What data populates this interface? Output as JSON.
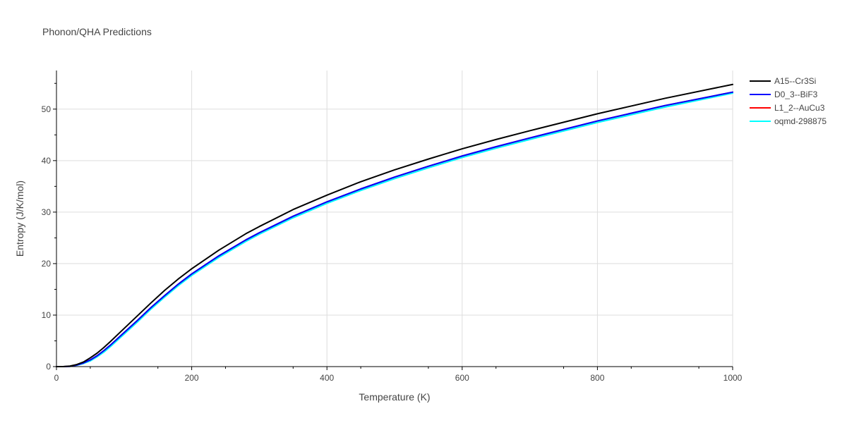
{
  "chart_data": {
    "type": "line",
    "title": "Phonon/QHA Predictions",
    "xlabel": "Temperature (K)",
    "ylabel": "Entropy (J/K/mol)",
    "xlim": [
      0,
      1000
    ],
    "ylim": [
      0,
      57.5
    ],
    "xticks": [
      0,
      200,
      400,
      600,
      800,
      1000
    ],
    "xtick_labels": [
      "0",
      "200",
      "400",
      "600",
      "800",
      "1000"
    ],
    "yticks": [
      0,
      10,
      20,
      30,
      40,
      50
    ],
    "ytick_labels": [
      "0",
      "10",
      "20",
      "30",
      "40",
      "50"
    ],
    "grid": true,
    "legend_position": "top-right",
    "x": [
      0,
      10,
      20,
      30,
      40,
      50,
      60,
      70,
      80,
      100,
      120,
      140,
      160,
      180,
      200,
      240,
      280,
      300,
      350,
      400,
      450,
      500,
      550,
      600,
      650,
      700,
      800,
      900,
      1000
    ],
    "series": [
      {
        "name": "A15--Cr3Si",
        "color": "#000000",
        "values": [
          0,
          0.0,
          0.1,
          0.4,
          0.9,
          1.7,
          2.6,
          3.7,
          4.9,
          7.4,
          9.9,
          12.4,
          14.8,
          17.0,
          19.0,
          22.6,
          25.8,
          27.2,
          30.5,
          33.3,
          35.9,
          38.2,
          40.3,
          42.3,
          44.1,
          45.8,
          49.1,
          52.1,
          54.8
        ]
      },
      {
        "name": "D0_3--BiF3",
        "color": "#0000ff",
        "values": [
          0,
          0.0,
          0.05,
          0.3,
          0.7,
          1.3,
          2.1,
          3.1,
          4.2,
          6.6,
          9.0,
          11.5,
          13.8,
          16.0,
          18.0,
          21.5,
          24.6,
          26.0,
          29.2,
          32.0,
          34.5,
          36.8,
          38.9,
          40.9,
          42.7,
          44.4,
          47.7,
          50.7,
          53.3
        ]
      },
      {
        "name": "L1_2--AuCu3",
        "color": "#ff0000",
        "values": [
          0,
          0.0,
          0.05,
          0.3,
          0.7,
          1.3,
          2.1,
          3.1,
          4.2,
          6.6,
          9.0,
          11.5,
          13.8,
          16.0,
          18.0,
          21.5,
          24.6,
          26.0,
          29.2,
          32.0,
          34.5,
          36.8,
          38.9,
          40.9,
          42.7,
          44.4,
          47.7,
          50.7,
          53.3
        ]
      },
      {
        "name": "oqmd-298875",
        "color": "#00ffff",
        "values": [
          0,
          0.0,
          0.04,
          0.25,
          0.6,
          1.1,
          1.9,
          2.8,
          3.9,
          6.3,
          8.7,
          11.2,
          13.5,
          15.7,
          17.7,
          21.2,
          24.3,
          25.7,
          28.9,
          31.7,
          34.2,
          36.5,
          38.6,
          40.6,
          42.4,
          44.1,
          47.4,
          50.4,
          53.1
        ]
      }
    ]
  }
}
